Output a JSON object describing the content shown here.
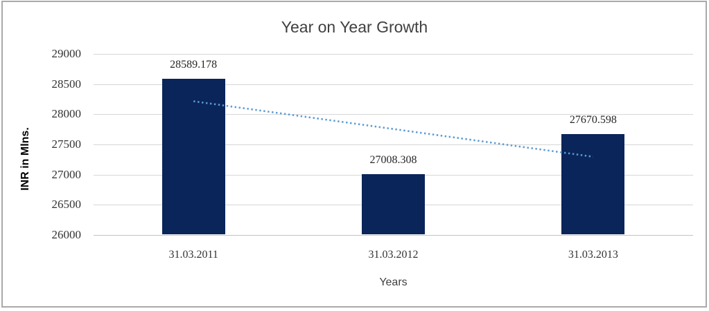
{
  "window": {
    "background": "#ffffff",
    "frame_border_color": "#a9a9a9"
  },
  "chart_data": {
    "type": "bar",
    "title": "Year on Year Growth",
    "xlabel": "Years",
    "ylabel": "INR in Mlns.",
    "categories": [
      "31.03.2011",
      "31.03.2012",
      "31.03.2013"
    ],
    "series": [
      {
        "name": "INR in Mlns.",
        "values": [
          28589.178,
          27008.308,
          27670.598
        ]
      }
    ],
    "data_labels": [
      "28589.178",
      "27008.308",
      "27670.598"
    ],
    "ylim": [
      26000,
      29000
    ],
    "ytick_step": 500,
    "yticks": [
      "29000",
      "28500",
      "28000",
      "27500",
      "27000",
      "26500",
      "26000"
    ],
    "grid": true,
    "legend": "none",
    "bar_color": "#0a2559",
    "gridline_color": "#d6d6d6",
    "trendline": {
      "type": "linear",
      "style": "dotted",
      "color": "#5b9bd5"
    },
    "title_color": "#404040",
    "tick_label_color": "#333333",
    "data_label_color": "#262626"
  }
}
